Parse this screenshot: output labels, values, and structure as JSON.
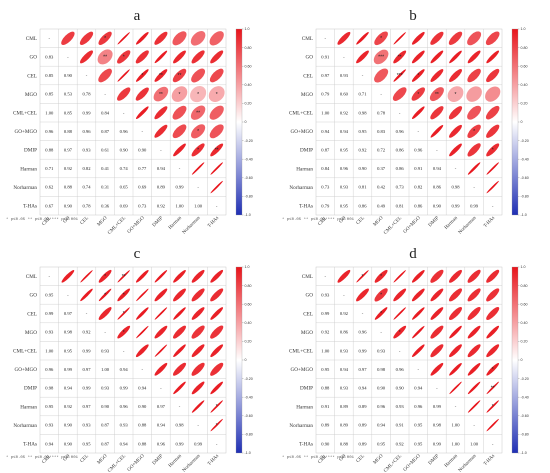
{
  "chart_data": [
    {
      "type": "heatmap",
      "panel": "a",
      "variables": [
        "CML",
        "GO",
        "CEL",
        "MGO",
        "CML+CEL",
        "GO+MGO",
        "DMIP",
        "Harman",
        "Norharman",
        "T-HAs"
      ],
      "lower": [
        [],
        [
          0.83
        ],
        [
          0.85,
          0.9
        ],
        [
          0.85,
          0.53,
          0.78
        ],
        [
          1.0,
          0.85,
          0.99,
          0.84
        ],
        [
          0.96,
          0.88,
          0.96,
          0.87,
          0.96
        ],
        [
          0.88,
          0.97,
          0.93,
          0.61,
          0.9,
          0.9
        ],
        [
          0.71,
          0.92,
          0.82,
          0.41,
          0.74,
          0.77,
          0.94
        ],
        [
          0.62,
          0.88,
          0.74,
          0.31,
          0.65,
          0.69,
          0.89,
          0.99
        ],
        [
          0.67,
          0.9,
          0.78,
          0.36,
          0.69,
          0.73,
          0.92,
          1.0,
          1.0
        ]
      ],
      "stars": [
        [
          0,
          3,
          "*"
        ],
        [
          1,
          3,
          "**"
        ],
        [
          1,
          4,
          "*"
        ],
        [
          2,
          5,
          "*"
        ],
        [
          2,
          6,
          "**"
        ],
        [
          2,
          7,
          "**"
        ],
        [
          3,
          6,
          "**"
        ],
        [
          3,
          7,
          "*"
        ],
        [
          3,
          8,
          "*"
        ],
        [
          3,
          9,
          "*"
        ],
        [
          4,
          8,
          "**"
        ],
        [
          5,
          8,
          "*"
        ],
        [
          6,
          9,
          "**"
        ],
        [
          6,
          8,
          "*"
        ]
      ],
      "colorbar_ticks": [
        "1.0",
        "0.80",
        "0.60",
        "0.40",
        "0.20",
        "0",
        "-0.20",
        "-0.40",
        "-0.60",
        "-0.80",
        "-1.0"
      ],
      "footnote": "* p≤0.05   ** p≤0.01   *** p≤0.001"
    },
    {
      "type": "heatmap",
      "panel": "b",
      "variables": [
        "CML",
        "GO",
        "CEL",
        "MGO",
        "CML+CEL",
        "GO+MGO",
        "DMIP",
        "Harman",
        "Norharman",
        "T-HAs"
      ],
      "lower": [
        [],
        [
          0.91
        ],
        [
          0.97,
          0.93
        ],
        [
          0.79,
          0.6,
          0.71
        ],
        [
          1.0,
          0.92,
          0.98,
          0.78
        ],
        [
          0.94,
          0.94,
          0.95,
          0.83,
          0.96
        ],
        [
          0.87,
          0.95,
          0.92,
          0.72,
          0.86,
          0.96
        ],
        [
          0.84,
          0.96,
          0.9,
          0.37,
          0.86,
          0.91,
          0.94
        ],
        [
          0.73,
          0.93,
          0.81,
          0.42,
          0.73,
          0.82,
          0.86,
          0.98
        ],
        [
          0.79,
          0.95,
          0.86,
          0.49,
          0.81,
          0.86,
          0.9,
          0.99,
          0.99
        ]
      ],
      "stars": [
        [
          0,
          3,
          "*"
        ],
        [
          1,
          3,
          "***"
        ],
        [
          1,
          4,
          "**"
        ],
        [
          2,
          4,
          "***"
        ],
        [
          2,
          5,
          "*"
        ],
        [
          3,
          5,
          "*"
        ],
        [
          3,
          6,
          "**"
        ],
        [
          3,
          7,
          "*"
        ],
        [
          5,
          8,
          "*"
        ],
        [
          6,
          9,
          "*"
        ]
      ],
      "colorbar_ticks": [
        "1.0",
        "0.80",
        "0.60",
        "0.40",
        "0.20",
        "0",
        "-0.20",
        "-0.40",
        "-0.60",
        "-0.80",
        "-1.0"
      ],
      "footnote": "* p≤0.05   ** p≤0.01   *** p≤0.001"
    },
    {
      "type": "heatmap",
      "panel": "c",
      "variables": [
        "CML",
        "GO",
        "CEL",
        "MGO",
        "CML+CEL",
        "GO+MGO",
        "DMIP",
        "Harman",
        "Norharman",
        "T-HAs"
      ],
      "lower": [
        [],
        [
          0.95
        ],
        [
          0.99,
          0.97
        ],
        [
          0.93,
          0.98,
          0.92
        ],
        [
          1.0,
          0.95,
          0.99,
          0.93
        ],
        [
          0.96,
          0.99,
          0.97,
          1.0,
          0.94
        ],
        [
          0.98,
          0.94,
          0.99,
          0.93,
          0.99,
          0.94
        ],
        [
          0.95,
          0.92,
          0.97,
          0.9,
          0.96,
          0.9,
          0.97
        ],
        [
          0.93,
          0.9,
          0.93,
          0.87,
          0.93,
          0.88,
          0.94,
          0.98
        ],
        [
          0.94,
          0.9,
          0.95,
          0.87,
          0.94,
          0.88,
          0.96,
          0.99,
          0.99
        ]
      ],
      "stars": [
        [
          0,
          3,
          "*"
        ],
        [
          0,
          4,
          "**"
        ],
        [
          1,
          3,
          "*"
        ],
        [
          1,
          4,
          "*"
        ],
        [
          2,
          4,
          "*"
        ],
        [
          3,
          4,
          "*"
        ],
        [
          7,
          9,
          "*"
        ],
        [
          8,
          9,
          "*"
        ]
      ],
      "colorbar_ticks": [
        "1.0",
        "0.80",
        "0.60",
        "0.40",
        "0.20",
        "0",
        "-0.20",
        "-0.40",
        "-0.60",
        "-0.80",
        "-1.0"
      ],
      "footnote": "* p≤0.05   ** p≤0.01   *** p≤0.001"
    },
    {
      "type": "heatmap",
      "panel": "d",
      "variables": [
        "CML",
        "GO",
        "CEL",
        "MGO",
        "CML+CEL",
        "GO+MGO",
        "DMIP",
        "Harman",
        "Norharman",
        "T-HAs"
      ],
      "lower": [
        [],
        [
          0.93
        ],
        [
          0.99,
          0.92
        ],
        [
          0.92,
          0.86,
          0.96
        ],
        [
          1.0,
          0.93,
          0.99,
          0.93
        ],
        [
          0.95,
          0.94,
          0.97,
          0.98,
          0.96
        ],
        [
          0.88,
          0.93,
          0.94,
          0.9,
          0.9,
          0.94
        ],
        [
          0.91,
          0.89,
          0.89,
          0.96,
          0.93,
          0.96,
          0.99
        ],
        [
          0.89,
          0.89,
          0.89,
          0.94,
          0.91,
          0.95,
          0.98,
          1.0
        ],
        [
          0.9,
          0.88,
          0.89,
          0.95,
          0.92,
          0.95,
          0.99,
          1.0,
          1.0
        ]
      ],
      "stars": [
        [
          0,
          2,
          "*"
        ],
        [
          0,
          3,
          "*"
        ],
        [
          1,
          3,
          "*"
        ],
        [
          2,
          3,
          "*"
        ],
        [
          3,
          4,
          "*"
        ],
        [
          5,
          9,
          "*"
        ],
        [
          6,
          9,
          "**"
        ],
        [
          7,
          9,
          "*"
        ]
      ],
      "colorbar_ticks": [
        "1.0",
        "0.80",
        "0.60",
        "0.40",
        "0.20",
        "0",
        "-0.20",
        "-0.40",
        "-0.60",
        "-0.80",
        "-1.0"
      ],
      "footnote": "* p≤0.05   ** p≤0.01   *** p≤0.001"
    }
  ],
  "colors": {
    "positive": "#e8141b",
    "negative": "#1f2fb4",
    "neutral": "#ffffff",
    "grid": "#c8c8c8"
  }
}
